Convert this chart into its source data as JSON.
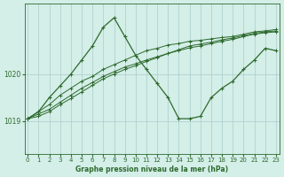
{
  "title": "Graphe pression niveau de la mer (hPa)",
  "bg_color": "#d4eee8",
  "grid_color": "#aacccc",
  "line_color": "#2d6a2d",
  "x_ticks": [
    0,
    1,
    2,
    3,
    4,
    5,
    6,
    7,
    8,
    9,
    10,
    11,
    12,
    13,
    14,
    15,
    16,
    17,
    18,
    19,
    20,
    21,
    22,
    23
  ],
  "y_ticks": [
    1019,
    1020
  ],
  "ylim": [
    1018.3,
    1021.5
  ],
  "xlim": [
    -0.3,
    23.3
  ],
  "series1": {
    "x": [
      0,
      1,
      2,
      3,
      4,
      5,
      6,
      7,
      8,
      9,
      10,
      11,
      12,
      13,
      14,
      15,
      16,
      17,
      18,
      19,
      20,
      21,
      22,
      23
    ],
    "y": [
      1019.05,
      1019.2,
      1019.35,
      1019.55,
      1019.7,
      1019.85,
      1019.95,
      1020.1,
      1020.2,
      1020.3,
      1020.4,
      1020.5,
      1020.55,
      1020.62,
      1020.65,
      1020.7,
      1020.72,
      1020.75,
      1020.78,
      1020.8,
      1020.85,
      1020.9,
      1020.92,
      1020.95
    ]
  },
  "series2": {
    "x": [
      0,
      1,
      2,
      3,
      4,
      5,
      6,
      7,
      8,
      9,
      10,
      11,
      12,
      13,
      14,
      15,
      16,
      17,
      18,
      19,
      20,
      21,
      22,
      23
    ],
    "y": [
      1019.05,
      1019.15,
      1019.25,
      1019.4,
      1019.55,
      1019.7,
      1019.82,
      1019.95,
      1020.05,
      1020.15,
      1020.22,
      1020.3,
      1020.37,
      1020.44,
      1020.5,
      1020.56,
      1020.6,
      1020.65,
      1020.7,
      1020.74,
      1020.8,
      1020.85,
      1020.88,
      1020.9
    ]
  },
  "series3": {
    "x": [
      0,
      1,
      2,
      3,
      4,
      5,
      6,
      7,
      8,
      9,
      10,
      11,
      12,
      13,
      14,
      15,
      16,
      17,
      18,
      19,
      20,
      21,
      22,
      23
    ],
    "y": [
      1019.05,
      1019.1,
      1019.2,
      1019.35,
      1019.48,
      1019.62,
      1019.76,
      1019.9,
      1020.0,
      1020.1,
      1020.18,
      1020.27,
      1020.35,
      1020.44,
      1020.52,
      1020.6,
      1020.64,
      1020.68,
      1020.73,
      1020.77,
      1020.82,
      1020.87,
      1020.9,
      1020.92
    ]
  },
  "main_series": {
    "x": [
      0,
      1,
      2,
      3,
      4,
      5,
      6,
      7,
      8,
      9,
      10,
      11,
      12,
      13,
      14,
      15,
      16,
      17,
      18,
      19,
      20,
      21,
      22,
      23
    ],
    "y": [
      1019.05,
      1019.2,
      1019.5,
      1019.75,
      1020.0,
      1020.3,
      1020.6,
      1021.0,
      1021.2,
      1020.8,
      1020.4,
      1020.1,
      1019.8,
      1019.5,
      1019.05,
      1019.05,
      1019.1,
      1019.5,
      1019.7,
      1019.85,
      1020.1,
      1020.3,
      1020.55,
      1020.5
    ]
  }
}
